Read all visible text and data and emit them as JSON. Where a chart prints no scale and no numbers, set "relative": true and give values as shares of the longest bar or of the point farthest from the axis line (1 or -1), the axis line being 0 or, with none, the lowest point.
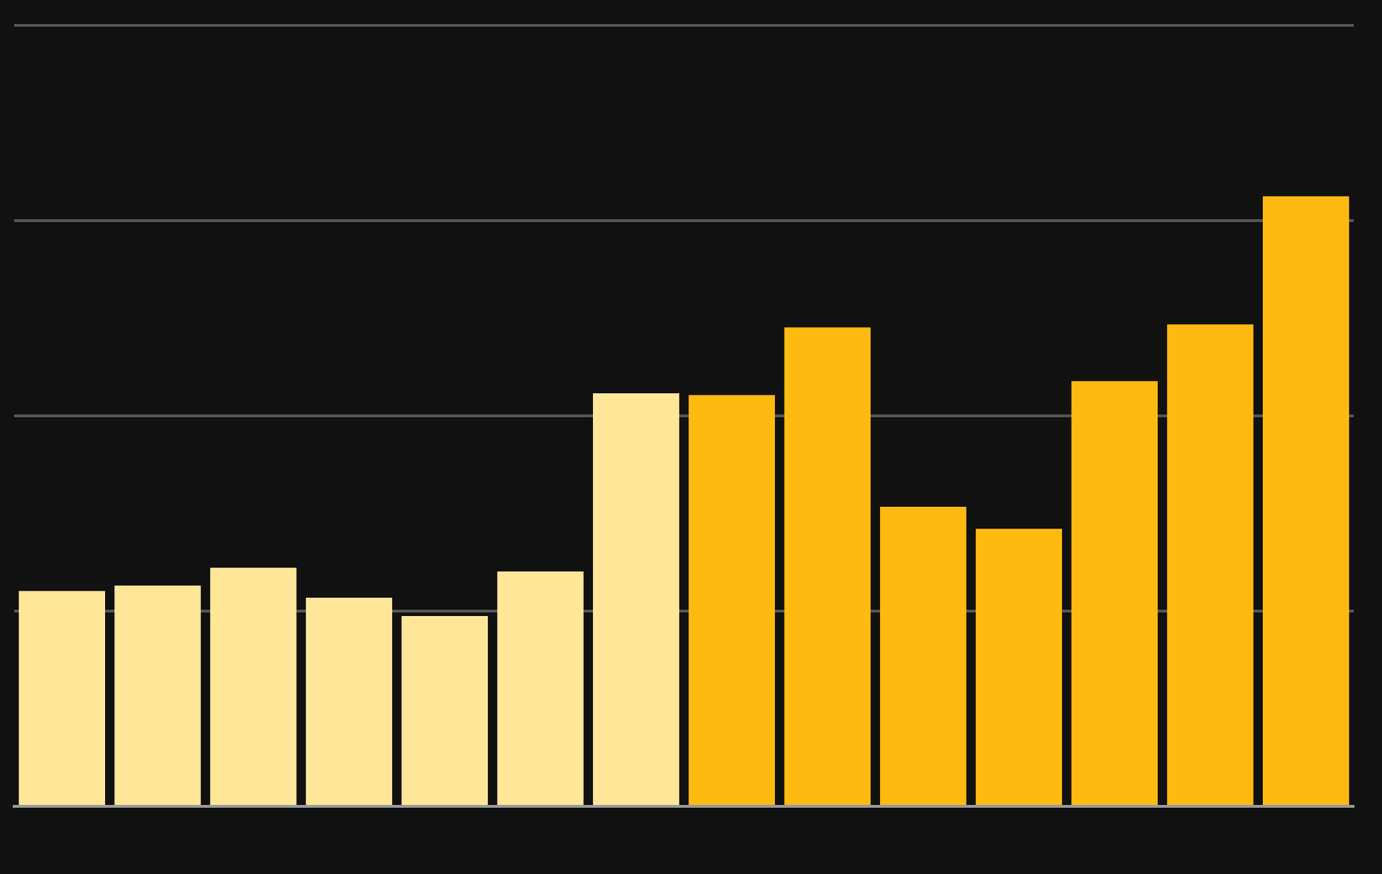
{
  "chart_data": {
    "type": "bar",
    "relative": true,
    "grid": "y",
    "legend": false,
    "categories": [
      null,
      null,
      null,
      null,
      null,
      null,
      null,
      null,
      null,
      null,
      null,
      null,
      null,
      null
    ],
    "values": [
      0.353,
      0.362,
      0.391,
      0.342,
      0.312,
      0.385,
      0.677,
      0.674,
      0.785,
      0.491,
      0.455,
      0.697,
      0.79,
      1
    ],
    "colors": [
      "#ffe699",
      "#ffe699",
      "#ffe699",
      "#ffe699",
      "#ffe699",
      "#ffe699",
      "#ffe699",
      "#ffba12",
      "#ffba12",
      "#ffba12",
      "#ffba12",
      "#ffba12",
      "#ffba12",
      "#ffba12"
    ]
  }
}
